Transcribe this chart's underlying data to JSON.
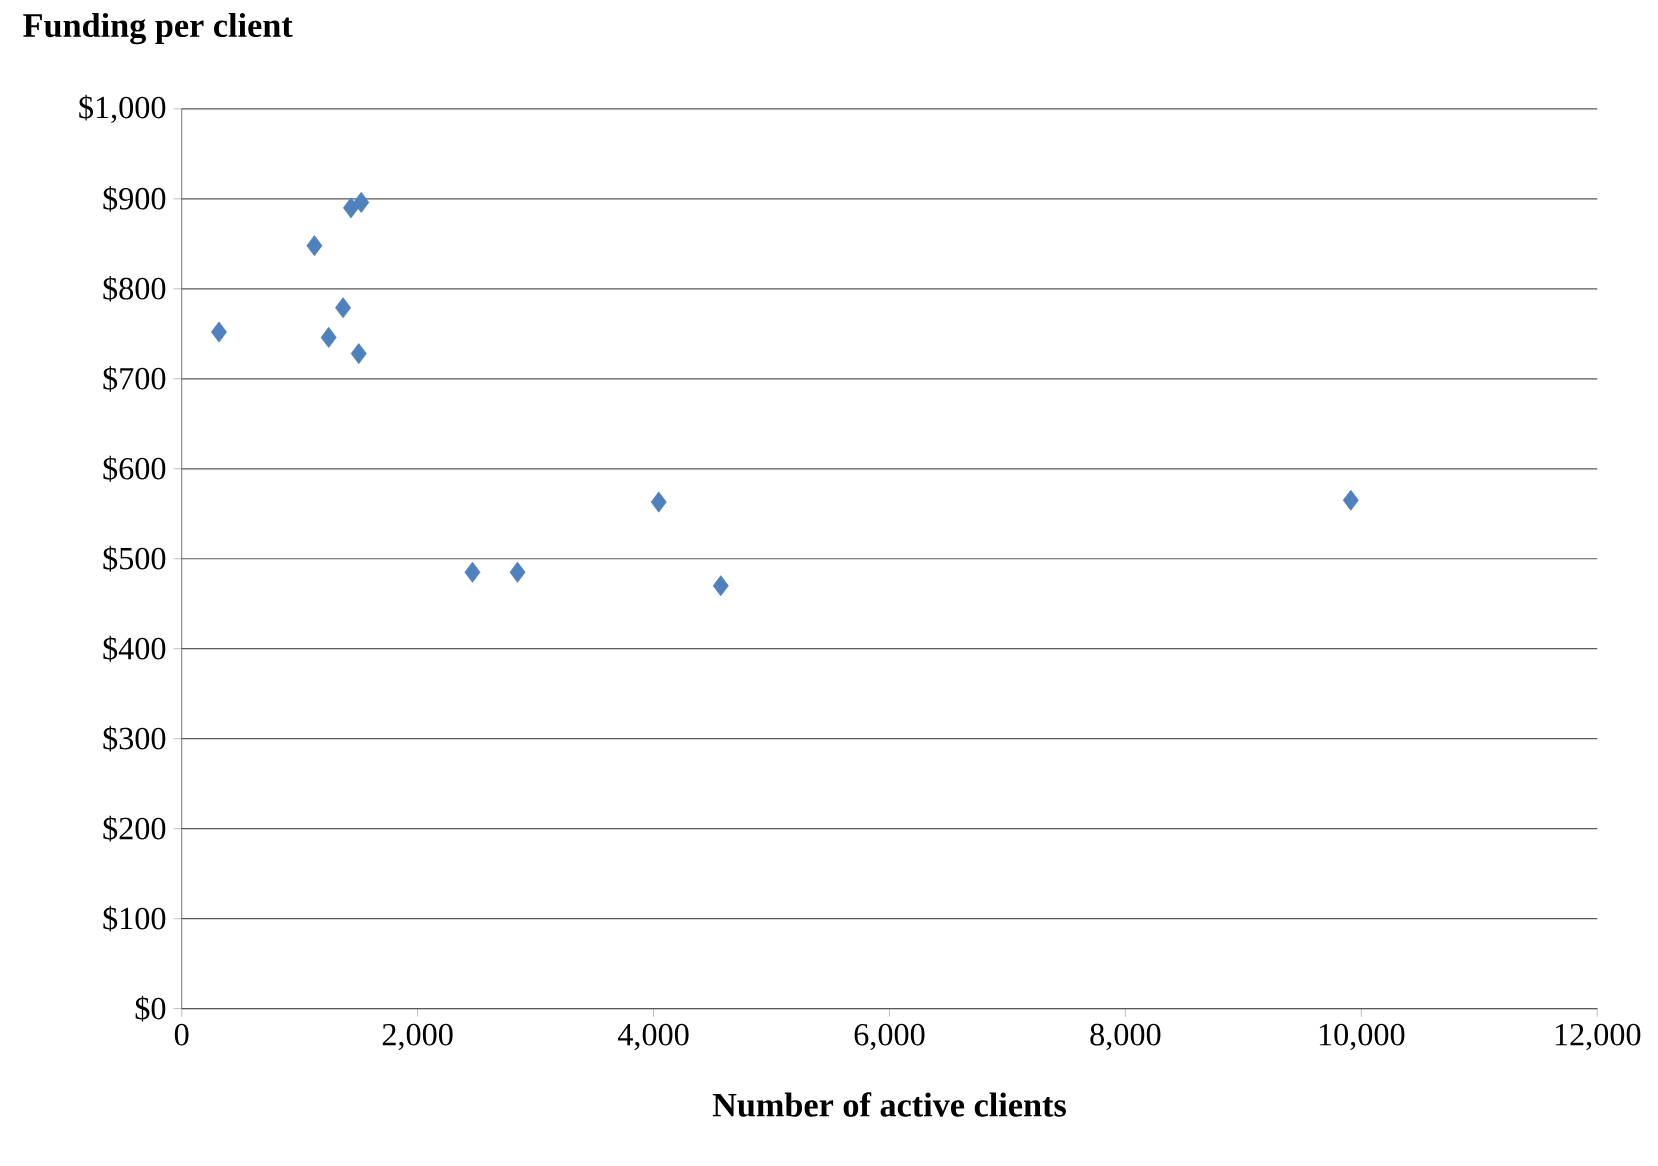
{
  "chart_data": {
    "type": "scatter",
    "ylabel": "Funding per client",
    "xlabel": "Number of active clients",
    "x": [
      316,
      1125,
      1435,
      1522,
      1368,
      1246,
      1501,
      2465,
      2847,
      4044,
      4570,
      9911
    ],
    "series": [
      {
        "color": "#4f81bd",
        "values": [
          752,
          848,
          890,
          896,
          779,
          746,
          728,
          485,
          485,
          563,
          470,
          565
        ]
      }
    ],
    "marker": "diamond",
    "grid": "y",
    "xlim": [
      0,
      12000
    ],
    "xticks": [
      0,
      {
        "value": 2000,
        "label": "2,000"
      },
      {
        "value": 4000,
        "label": "4,000"
      },
      {
        "value": 6000,
        "label": "6,000"
      },
      {
        "value": 8000,
        "label": "8,000"
      },
      {
        "value": 10000,
        "label": "10,000"
      },
      {
        "value": 12000,
        "label": "12,000"
      }
    ],
    "ylim": [
      0,
      1000
    ],
    "yticks": [
      {
        "value": 0,
        "label": "$0"
      },
      {
        "value": 100,
        "label": "$100"
      },
      {
        "value": 200,
        "label": "$200"
      },
      {
        "value": 300,
        "label": "$300"
      },
      {
        "value": 400,
        "label": "$400"
      },
      {
        "value": 500,
        "label": "$500"
      },
      {
        "value": 600,
        "label": "$600"
      },
      {
        "value": 700,
        "label": "$700"
      },
      {
        "value": 800,
        "label": "$800"
      },
      {
        "value": 900,
        "label": "$900"
      },
      {
        "value": 1000,
        "label": "$1,000"
      }
    ]
  }
}
